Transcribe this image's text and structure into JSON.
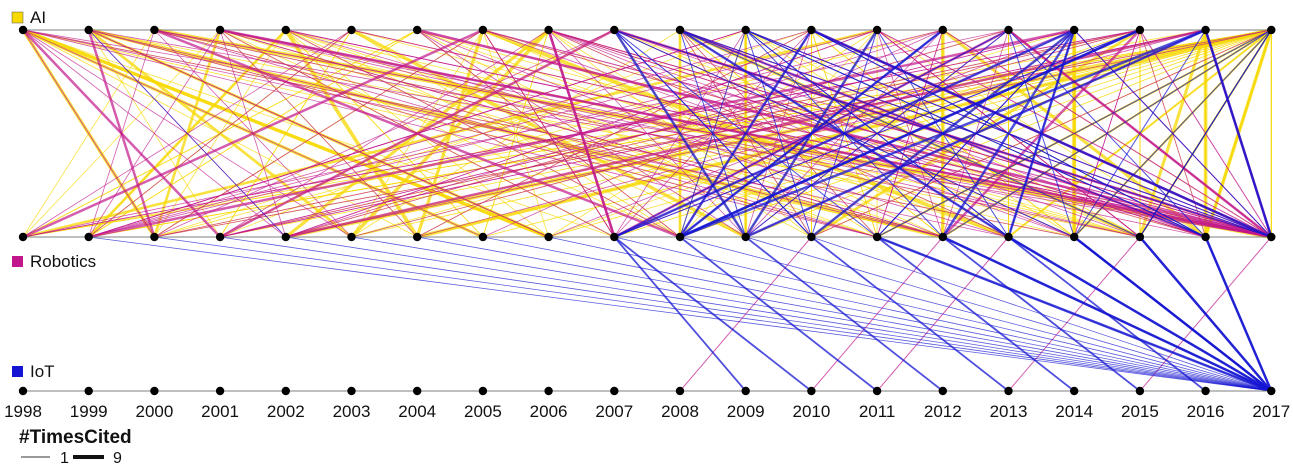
{
  "years": [
    "1998",
    "1999",
    "2000",
    "2001",
    "2002",
    "2003",
    "2004",
    "2005",
    "2006",
    "2007",
    "2008",
    "2009",
    "2010",
    "2011",
    "2012",
    "2013",
    "2014",
    "2015",
    "2016",
    "2017"
  ],
  "layers": [
    {
      "name": "AI",
      "color": "#f7d800"
    },
    {
      "name": "Robotics",
      "color": "#c2168c"
    },
    {
      "name": "IoT",
      "color": "#1414d2"
    }
  ],
  "legend": {
    "title": "#TimesCited",
    "min_label": "1",
    "max_label": "9"
  }
}
